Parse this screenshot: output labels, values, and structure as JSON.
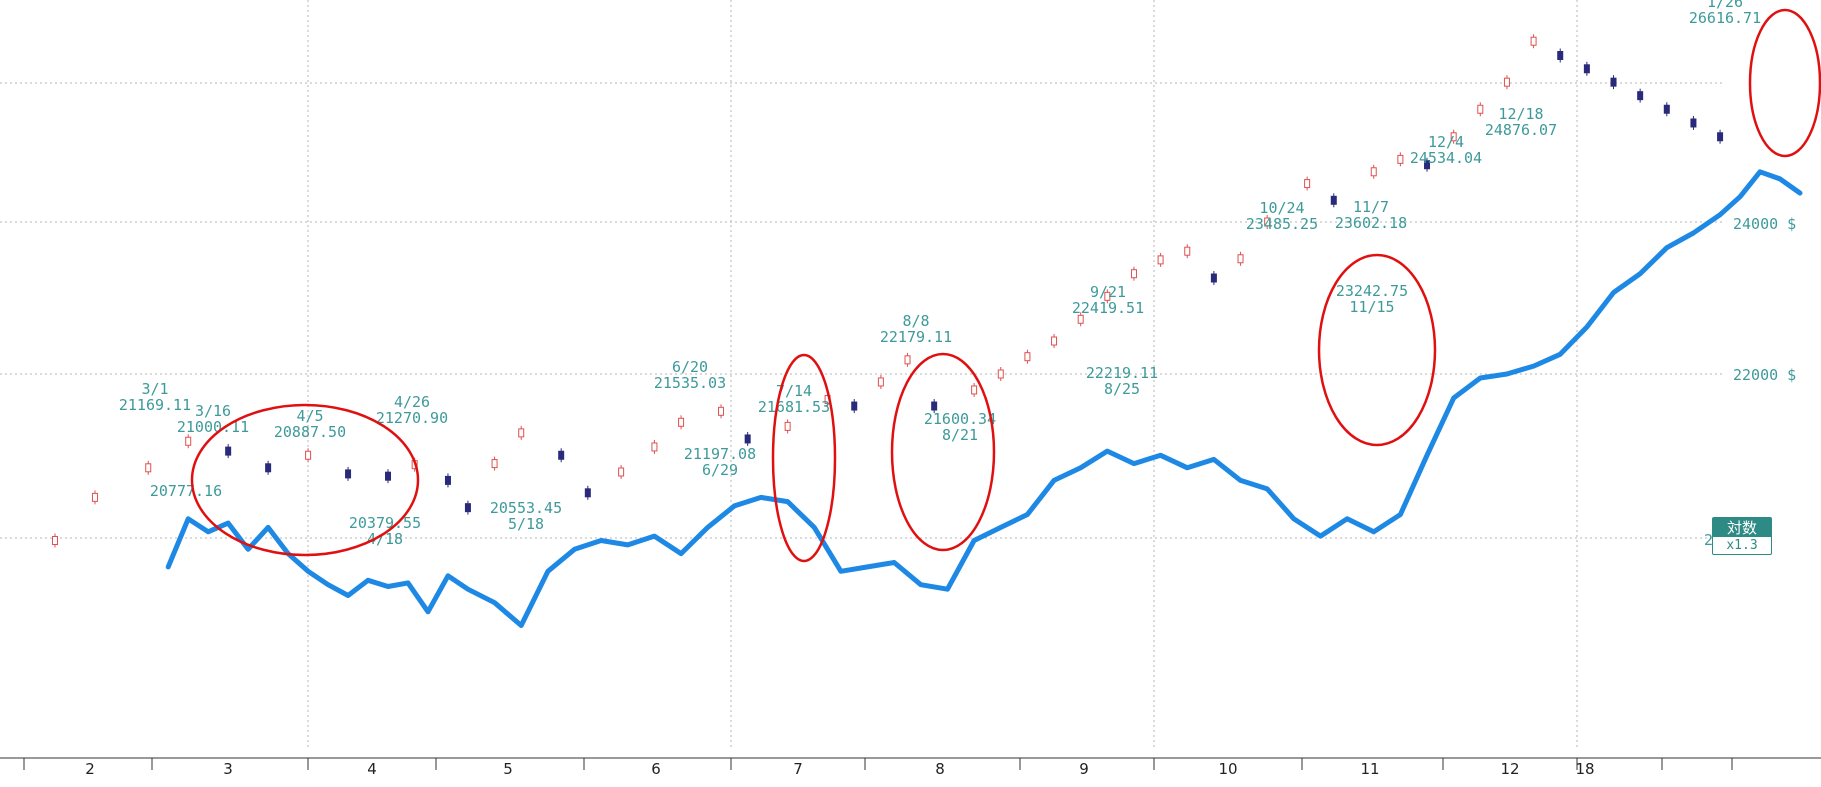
{
  "chart_data": {
    "type": "line",
    "scale": "log",
    "grid": true,
    "x_ticks": [
      "2",
      "3",
      "4",
      "5",
      "6",
      "7",
      "8",
      "9",
      "10",
      "11",
      "12",
      "18"
    ],
    "y_ticks": [
      "24000 $",
      "22000 $",
      "2"
    ],
    "series": [
      {
        "style": "candlestick",
        "color": "#e05050",
        "x": [
          0.0,
          0.3,
          0.7,
          1.0,
          1.3,
          1.6,
          1.9,
          2.2,
          2.5,
          2.7,
          2.95,
          3.1,
          3.3,
          3.5,
          3.8,
          4.0,
          4.25,
          4.5,
          4.7,
          5.0,
          5.2,
          5.5,
          5.8,
          6.0,
          6.2,
          6.4,
          6.6,
          6.9,
          7.1,
          7.3,
          7.5,
          7.7,
          7.9,
          8.1,
          8.3,
          8.5,
          8.7,
          8.9,
          9.1,
          9.4,
          9.6,
          9.9,
          10.1,
          10.3,
          10.5,
          10.7,
          10.9,
          11.1,
          11.3,
          11.5,
          11.7,
          11.9,
          12.1,
          12.3,
          12.5
        ],
        "y": [
          20000,
          20500,
          20850,
          21169.11,
          21050,
          20850,
          21000.11,
          20777.16,
          20750,
          20887.5,
          20700,
          20379.55,
          20900,
          21270.9,
          21000,
          20553.45,
          20800,
          21100,
          21400,
          21535.03,
          21197.08,
          21350,
          21681.53,
          21600,
          21900,
          22179.11,
          21600.34,
          21800,
          22000,
          22219.11,
          22419.51,
          22700,
          23000,
          23300,
          23485.25,
          23602.18,
          23242.75,
          23500,
          24000,
          24534.04,
          24300,
          24700,
          24876.07,
          24800,
          25200,
          25600,
          26000,
          26616.71,
          26400,
          26200,
          26000,
          25800,
          25600,
          25400,
          25200
        ]
      },
      {
        "style": "line",
        "color": "#1e88e5",
        "x": [
          0.85,
          1.0,
          1.15,
          1.3,
          1.45,
          1.6,
          1.75,
          1.9,
          2.05,
          2.2,
          2.35,
          2.5,
          2.65,
          2.8,
          2.95,
          3.1,
          3.3,
          3.5,
          3.7,
          3.9,
          4.1,
          4.3,
          4.5,
          4.7,
          4.9,
          5.1,
          5.3,
          5.5,
          5.7,
          5.9,
          6.1,
          6.3,
          6.5,
          6.7,
          6.9,
          7.1,
          7.3,
          7.5,
          7.7,
          7.9,
          8.1,
          8.3,
          8.5,
          8.7,
          8.9,
          9.1,
          9.3,
          9.5,
          9.7,
          9.9,
          10.1,
          10.3,
          10.5,
          10.7,
          10.9,
          11.1,
          11.3,
          11.5,
          11.7,
          11.9,
          12.1,
          12.3,
          12.5,
          12.65,
          12.8,
          12.95,
          13.1
        ],
        "y": [
          19700,
          20250,
          20100,
          20200,
          19900,
          20150,
          19850,
          19650,
          19500,
          19380,
          19550,
          19480,
          19520,
          19200,
          19600,
          19450,
          19300,
          19050,
          19650,
          19900,
          20000,
          19950,
          20050,
          19850,
          20150,
          20400,
          20500,
          20450,
          20150,
          19650,
          19700,
          19750,
          19500,
          19450,
          20000,
          20150,
          20300,
          20700,
          20850,
          21050,
          20900,
          21000,
          20850,
          20950,
          20700,
          20600,
          20250,
          20050,
          20250,
          20100,
          20300,
          21000,
          21700,
          21950,
          22000,
          22100,
          22250,
          22600,
          23050,
          23300,
          23650,
          23850,
          24100,
          24350,
          24700,
          24600,
          24400
        ]
      }
    ],
    "annotations": [
      {
        "date": "3/1",
        "value": "21169.11"
      },
      {
        "date": "3/16",
        "value": "21000.11"
      },
      {
        "date": "4/5",
        "value": "20887.50"
      },
      {
        "date": "4/26",
        "value": "21270.90"
      },
      {
        "date": "",
        "value": "20777.16"
      },
      {
        "date": "4/18",
        "value": "20379.55"
      },
      {
        "date": "5/18",
        "value": "20553.45"
      },
      {
        "date": "6/20",
        "value": "21535.03"
      },
      {
        "date": "6/29",
        "value": "21197.08"
      },
      {
        "date": "7/14",
        "value": "21681.53"
      },
      {
        "date": "8/8",
        "value": "22179.11"
      },
      {
        "date": "8/21",
        "value": "21600.34"
      },
      {
        "date": "9/21",
        "value": "22419.51"
      },
      {
        "date": "8/25",
        "value": "22219.11"
      },
      {
        "date": "10/24",
        "value": "23485.25"
      },
      {
        "date": "11/7",
        "value": "23602.18"
      },
      {
        "date": "11/15",
        "value": "23242.75"
      },
      {
        "date": "12/4",
        "value": "24534.04"
      },
      {
        "date": "12/18",
        "value": "24876.07"
      },
      {
        "date": "1/26",
        "value": "26616.71"
      }
    ],
    "highlight_circles": 5
  },
  "badge": {
    "label": "対数",
    "zoom": "x1.3"
  }
}
